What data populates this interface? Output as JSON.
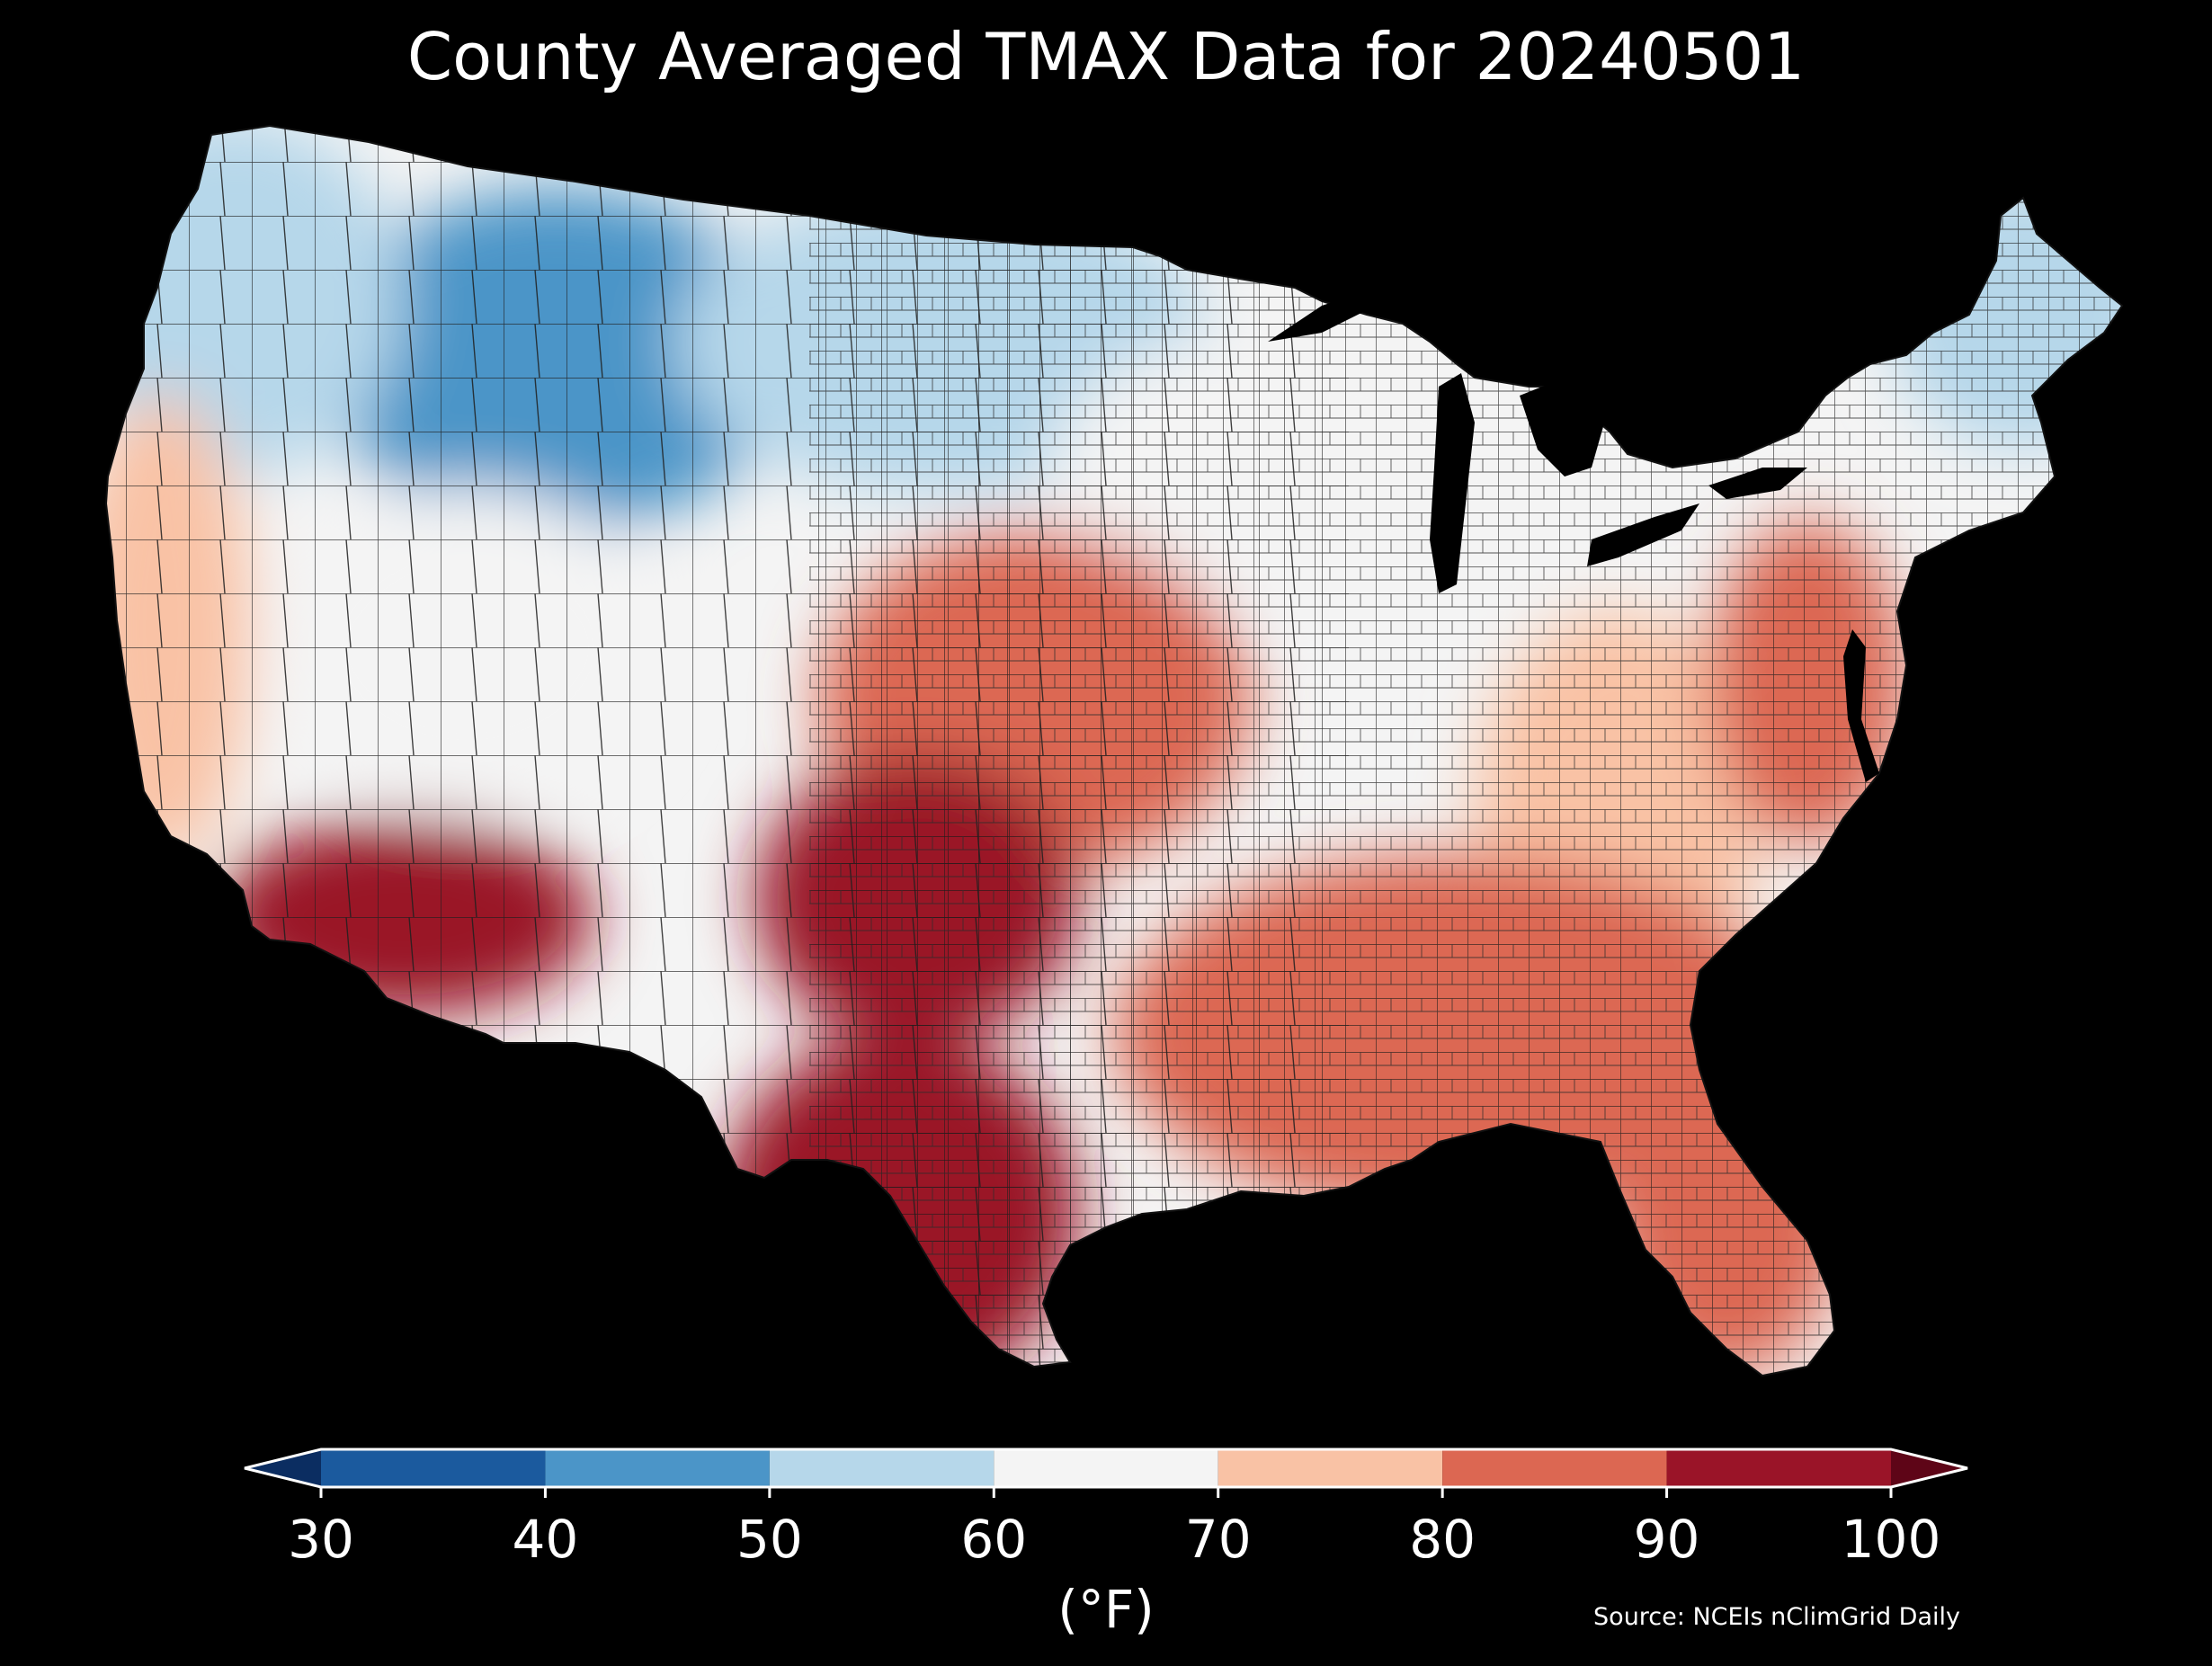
{
  "title": "County Averaged TMAX Data for 20240501",
  "colorbar": {
    "units_label": "(°F)",
    "ticks": [
      "30",
      "40",
      "50",
      "60",
      "70",
      "80",
      "90",
      "100"
    ],
    "bins": [
      {
        "min": 30,
        "max": 40,
        "color": "#1b5a9e"
      },
      {
        "min": 40,
        "max": 50,
        "color": "#4b95c8"
      },
      {
        "min": 50,
        "max": 60,
        "color": "#b6d7ea"
      },
      {
        "min": 60,
        "max": 70,
        "color": "#f4f4f4"
      },
      {
        "min": 70,
        "max": 80,
        "color": "#f9c2a5"
      },
      {
        "min": 80,
        "max": 90,
        "color": "#dc6752"
      },
      {
        "min": 90,
        "max": 100,
        "color": "#9a1428"
      }
    ],
    "under_color": "#0b2d61",
    "over_color": "#5e0517",
    "extend": "both"
  },
  "source_note": "Source: NCEIs nClimGrid Daily",
  "map": {
    "region": "Contiguous United States",
    "variable": "TMAX",
    "date": "20240501",
    "background": "#000000",
    "county_borders": "#2a2a2a",
    "water_color": "#000000",
    "regional_pattern": [
      {
        "region": "Northern Rockies / Montana / Wyoming",
        "tmax_f": 45
      },
      {
        "region": "Pacific Northwest",
        "tmax_f": 50
      },
      {
        "region": "Northern Plains / Dakotas",
        "tmax_f": 55
      },
      {
        "region": "Upper Midwest / Great Lakes",
        "tmax_f": 62
      },
      {
        "region": "New England",
        "tmax_f": 58
      },
      {
        "region": "Great Basin",
        "tmax_f": 65
      },
      {
        "region": "California coast",
        "tmax_f": 70
      },
      {
        "region": "Central Plains / Kansas",
        "tmax_f": 80
      },
      {
        "region": "Ohio Valley / Appalachians",
        "tmax_f": 72
      },
      {
        "region": "Mid-Atlantic",
        "tmax_f": 84
      },
      {
        "region": "Southeast",
        "tmax_f": 85
      },
      {
        "region": "Southwest desert / Arizona",
        "tmax_f": 91
      },
      {
        "region": "Western Oklahoma / Texas panhandle",
        "tmax_f": 92
      },
      {
        "region": "South Texas",
        "tmax_f": 94
      },
      {
        "region": "Florida",
        "tmax_f": 86
      }
    ]
  }
}
